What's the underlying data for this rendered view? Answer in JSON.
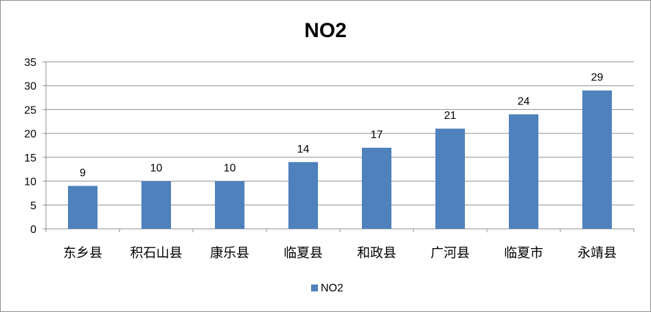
{
  "chart_data": {
    "type": "bar",
    "title": "NO2",
    "categories": [
      "东乡县",
      "积石山县",
      "康乐县",
      "临夏县",
      "和政县",
      "广河县",
      "临夏市",
      "永靖县"
    ],
    "series": [
      {
        "name": "NO2",
        "values": [
          9,
          10,
          10,
          14,
          17,
          21,
          24,
          29
        ],
        "color": "#4f81bd"
      }
    ],
    "yticks": [
      "0",
      "5",
      "10",
      "15",
      "20",
      "25",
      "30",
      "35"
    ],
    "ylim": [
      0,
      35
    ],
    "grid": true,
    "legend": "bottom"
  }
}
